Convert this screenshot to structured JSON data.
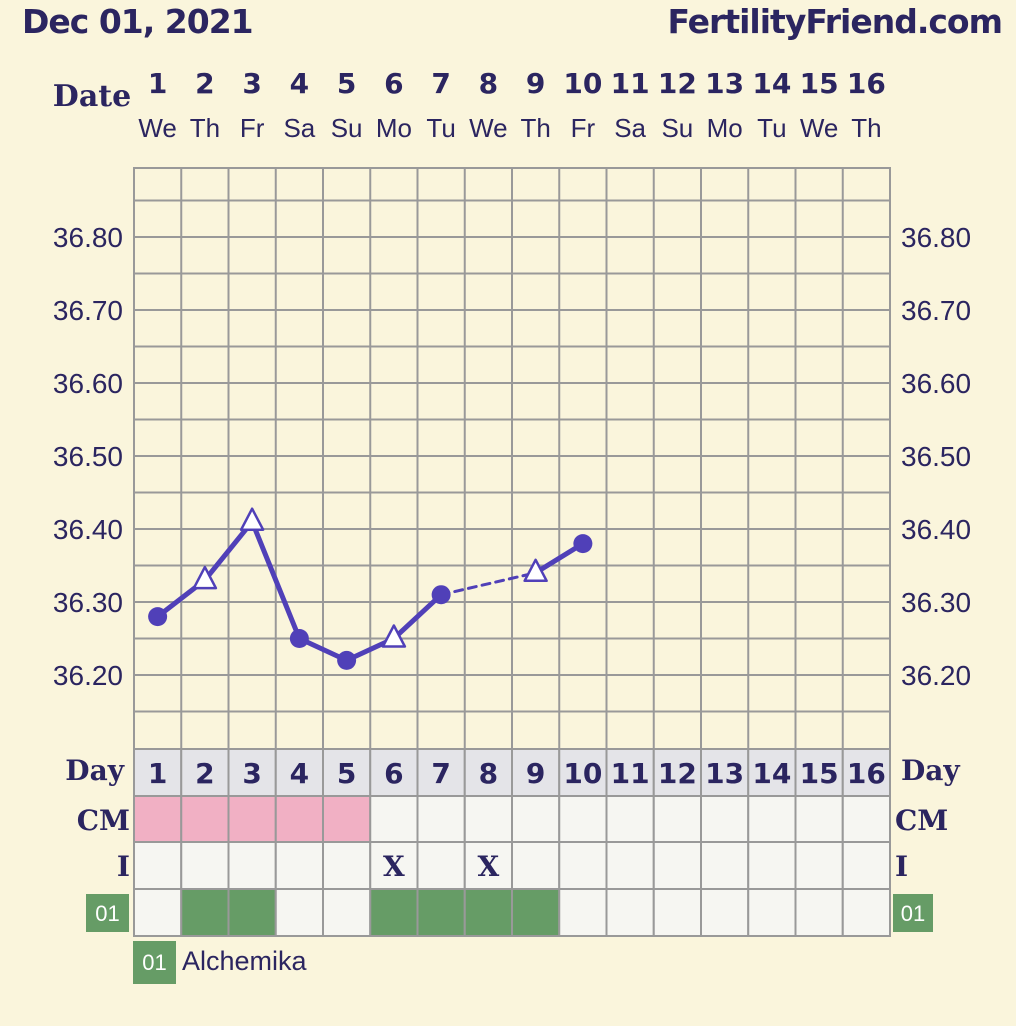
{
  "header": {
    "date": "Dec 01, 2021",
    "site": "FertilityFriend.com"
  },
  "labels": {
    "date": "Date",
    "day": "Day",
    "cm": "CM",
    "i": "I"
  },
  "legend": {
    "code": "01",
    "name": "Alchemika"
  },
  "colors": {
    "line": "#5040b8",
    "cm_fill": "#f1b0c4",
    "legend_fill": "#669c66",
    "grid": "#999999",
    "day_row": "#e4e4e8"
  },
  "chart_data": {
    "type": "line",
    "title": "",
    "xlabel": "Date",
    "ylabel": "",
    "ylim": [
      36.1,
      36.9
    ],
    "y_ticks": [
      "36.20",
      "36.30",
      "36.40",
      "36.50",
      "36.60",
      "36.70",
      "36.80"
    ],
    "days": [
      "1",
      "2",
      "3",
      "4",
      "5",
      "6",
      "7",
      "8",
      "9",
      "10",
      "11",
      "12",
      "13",
      "14",
      "15",
      "16"
    ],
    "weekdays": [
      "We",
      "Th",
      "Fr",
      "Sa",
      "Su",
      "Mo",
      "Tu",
      "We",
      "Th",
      "Fr",
      "Sa",
      "Su",
      "Mo",
      "Tu",
      "We",
      "Th"
    ],
    "series": [
      {
        "points": [
          {
            "day": 1,
            "temp": 36.28,
            "marker": "circle"
          },
          {
            "day": 2,
            "temp": 36.33,
            "marker": "triangle"
          },
          {
            "day": 3,
            "temp": 36.41,
            "marker": "triangle"
          },
          {
            "day": 4,
            "temp": 36.25,
            "marker": "circle"
          },
          {
            "day": 5,
            "temp": 36.22,
            "marker": "circle"
          },
          {
            "day": 6,
            "temp": 36.25,
            "marker": "triangle"
          },
          {
            "day": 7,
            "temp": 36.31,
            "marker": "circle"
          },
          {
            "day": 9,
            "temp": 36.34,
            "marker": "triangle"
          },
          {
            "day": 10,
            "temp": 36.38,
            "marker": "circle"
          }
        ],
        "dashed_between_days": [
          [
            7,
            9
          ]
        ]
      }
    ],
    "cm_highlight_days": [
      1,
      2,
      3,
      4,
      5
    ],
    "intercourse_days": [
      6,
      8
    ],
    "intercourse_mark": "X",
    "legend_row_days": [
      2,
      3,
      6,
      7,
      8,
      9
    ]
  }
}
